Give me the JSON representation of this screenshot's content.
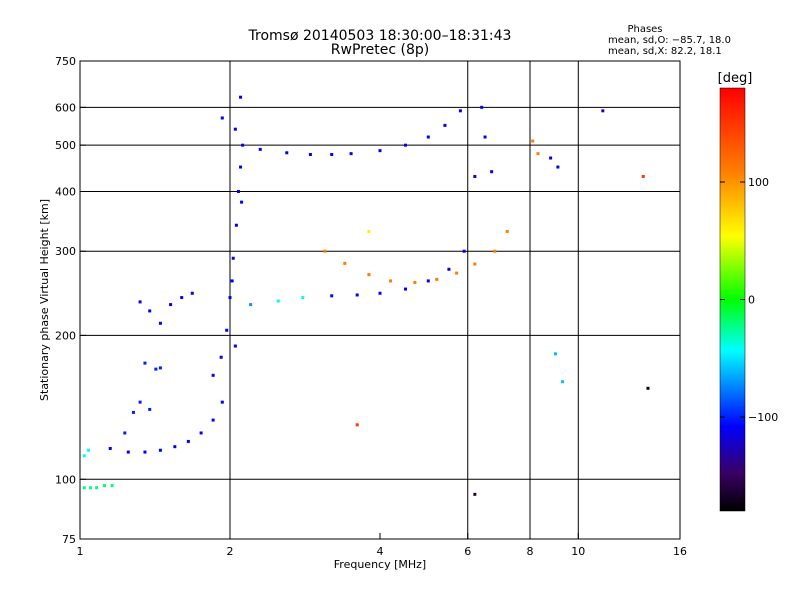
{
  "chart_data": {
    "type": "scatter",
    "title": "Tromsø 20140503 18:30:00–18:31:43",
    "subtitle": "RwPretec (8p)",
    "xlabel": "Frequency [MHz]",
    "ylabel": "Stationary phase Virtual Height [km]",
    "x_scale": "log",
    "y_scale": "log",
    "xlim": [
      1,
      16
    ],
    "ylim": [
      75,
      750
    ],
    "x_ticks": [
      "1",
      "2",
      "4",
      "6",
      "8",
      "10",
      "16"
    ],
    "y_ticks": [
      "750",
      "600",
      "500",
      "400",
      "300",
      "200",
      "100",
      "75"
    ],
    "grid_x": [
      2,
      6,
      8,
      10
    ],
    "grid_y": [
      100,
      200,
      300,
      400,
      500,
      600
    ],
    "grid": true,
    "legend": {
      "title": "Phases",
      "lines": [
        "mean, sd,O: −85.7, 18.0",
        "mean, sd,X:  82.2, 18.1"
      ],
      "placement": "top-right"
    },
    "colorbar": {
      "title": "[deg]",
      "range": [
        -180,
        180
      ],
      "ticks": [
        "100",
        "0",
        "−100"
      ],
      "tick_values": [
        100,
        0,
        -100
      ],
      "colormap": "rainbow"
    },
    "series": [
      {
        "values": [
          {
            "x": 1.02,
            "y": 96,
            "c": -20
          },
          {
            "x": 1.05,
            "y": 96,
            "c": -20
          },
          {
            "x": 1.08,
            "y": 96,
            "c": -20
          },
          {
            "x": 1.12,
            "y": 97,
            "c": -20
          },
          {
            "x": 1.16,
            "y": 97,
            "c": -20
          },
          {
            "x": 1.02,
            "y": 112,
            "c": -40
          },
          {
            "x": 1.04,
            "y": 115,
            "c": -40
          },
          {
            "x": 1.15,
            "y": 116,
            "c": -110
          },
          {
            "x": 1.25,
            "y": 114,
            "c": -110
          },
          {
            "x": 1.35,
            "y": 114,
            "c": -110
          },
          {
            "x": 1.45,
            "y": 115,
            "c": -110
          },
          {
            "x": 1.55,
            "y": 117,
            "c": -110
          },
          {
            "x": 1.65,
            "y": 120,
            "c": -110
          },
          {
            "x": 1.75,
            "y": 125,
            "c": -110
          },
          {
            "x": 1.85,
            "y": 133,
            "c": -110
          },
          {
            "x": 1.93,
            "y": 145,
            "c": -110
          },
          {
            "x": 1.23,
            "y": 125,
            "c": -100
          },
          {
            "x": 1.28,
            "y": 138,
            "c": -100
          },
          {
            "x": 1.32,
            "y": 145,
            "c": -100
          },
          {
            "x": 1.38,
            "y": 140,
            "c": -100
          },
          {
            "x": 1.35,
            "y": 175,
            "c": -100
          },
          {
            "x": 1.42,
            "y": 170,
            "c": -100
          },
          {
            "x": 1.45,
            "y": 171,
            "c": -100
          },
          {
            "x": 1.32,
            "y": 235,
            "c": -110
          },
          {
            "x": 1.38,
            "y": 225,
            "c": -110
          },
          {
            "x": 1.45,
            "y": 212,
            "c": -110
          },
          {
            "x": 1.52,
            "y": 232,
            "c": -110
          },
          {
            "x": 1.6,
            "y": 240,
            "c": -110
          },
          {
            "x": 1.68,
            "y": 245,
            "c": -110
          },
          {
            "x": 1.85,
            "y": 165,
            "c": -110
          },
          {
            "x": 1.92,
            "y": 180,
            "c": -110
          },
          {
            "x": 1.97,
            "y": 205,
            "c": -110
          },
          {
            "x": 2.0,
            "y": 240,
            "c": -110
          },
          {
            "x": 2.03,
            "y": 290,
            "c": -110
          },
          {
            "x": 2.06,
            "y": 340,
            "c": -110
          },
          {
            "x": 2.08,
            "y": 400,
            "c": -110
          },
          {
            "x": 2.1,
            "y": 450,
            "c": -110
          },
          {
            "x": 2.12,
            "y": 500,
            "c": -110
          },
          {
            "x": 2.05,
            "y": 190,
            "c": -110
          },
          {
            "x": 2.02,
            "y": 260,
            "c": -110
          },
          {
            "x": 2.11,
            "y": 380,
            "c": -110
          },
          {
            "x": 2.1,
            "y": 630,
            "c": -110
          },
          {
            "x": 2.05,
            "y": 540,
            "c": -110
          },
          {
            "x": 1.93,
            "y": 570,
            "c": -110
          },
          {
            "x": 2.3,
            "y": 490,
            "c": -110
          },
          {
            "x": 2.6,
            "y": 482,
            "c": -110
          },
          {
            "x": 2.9,
            "y": 478,
            "c": -110
          },
          {
            "x": 3.2,
            "y": 478,
            "c": -110
          },
          {
            "x": 3.5,
            "y": 480,
            "c": -110
          },
          {
            "x": 4.0,
            "y": 487,
            "c": -110
          },
          {
            "x": 4.5,
            "y": 500,
            "c": -110
          },
          {
            "x": 5.0,
            "y": 520,
            "c": -110
          },
          {
            "x": 5.4,
            "y": 550,
            "c": -110
          },
          {
            "x": 5.8,
            "y": 590,
            "c": -110
          },
          {
            "x": 2.2,
            "y": 232,
            "c": -70
          },
          {
            "x": 2.5,
            "y": 236,
            "c": -40
          },
          {
            "x": 2.8,
            "y": 240,
            "c": -40
          },
          {
            "x": 3.2,
            "y": 242,
            "c": -110
          },
          {
            "x": 3.6,
            "y": 243,
            "c": -110
          },
          {
            "x": 4.0,
            "y": 245,
            "c": -110
          },
          {
            "x": 4.5,
            "y": 250,
            "c": -110
          },
          {
            "x": 5.0,
            "y": 260,
            "c": -110
          },
          {
            "x": 5.5,
            "y": 275,
            "c": -110
          },
          {
            "x": 5.9,
            "y": 300,
            "c": -110
          },
          {
            "x": 3.1,
            "y": 300,
            "c": 110
          },
          {
            "x": 3.4,
            "y": 283,
            "c": 110
          },
          {
            "x": 3.8,
            "y": 268,
            "c": 110
          },
          {
            "x": 4.2,
            "y": 260,
            "c": 110
          },
          {
            "x": 4.7,
            "y": 258,
            "c": 110
          },
          {
            "x": 5.2,
            "y": 262,
            "c": 110
          },
          {
            "x": 5.7,
            "y": 270,
            "c": 110
          },
          {
            "x": 6.2,
            "y": 282,
            "c": 110
          },
          {
            "x": 6.8,
            "y": 300,
            "c": 110
          },
          {
            "x": 7.2,
            "y": 330,
            "c": 110
          },
          {
            "x": 6.2,
            "y": 430,
            "c": -110
          },
          {
            "x": 6.4,
            "y": 600,
            "c": -110
          },
          {
            "x": 6.5,
            "y": 520,
            "c": -110
          },
          {
            "x": 6.7,
            "y": 440,
            "c": -110
          },
          {
            "x": 8.1,
            "y": 510,
            "c": 110
          },
          {
            "x": 8.3,
            "y": 480,
            "c": 110
          },
          {
            "x": 8.8,
            "y": 470,
            "c": -110
          },
          {
            "x": 9.1,
            "y": 450,
            "c": -110
          },
          {
            "x": 3.8,
            "y": 330,
            "c": 60
          },
          {
            "x": 3.6,
            "y": 130,
            "c": 150
          },
          {
            "x": 6.2,
            "y": 93,
            "c": -160
          },
          {
            "x": 9.0,
            "y": 183,
            "c": -60
          },
          {
            "x": 9.3,
            "y": 160,
            "c": -60
          },
          {
            "x": 11.2,
            "y": 590,
            "c": -120
          },
          {
            "x": 13.5,
            "y": 430,
            "c": 150
          },
          {
            "x": 13.8,
            "y": 155,
            "c": -170
          }
        ]
      }
    ]
  }
}
